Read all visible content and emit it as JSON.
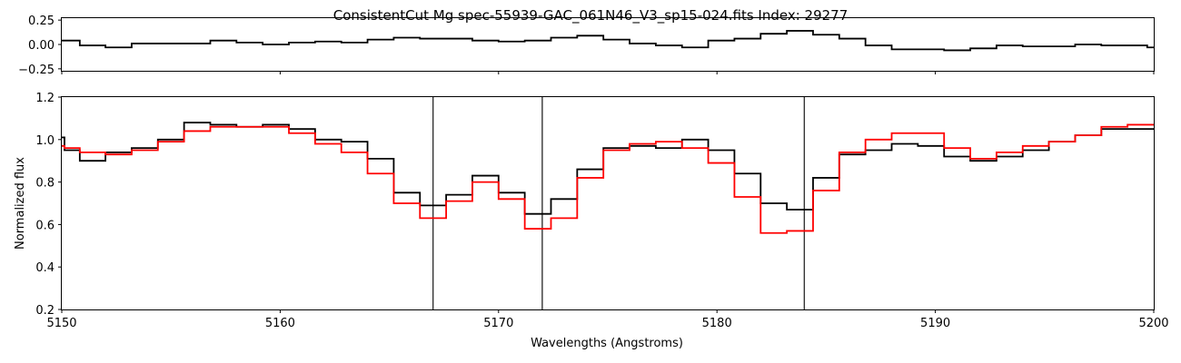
{
  "chart_data": [
    {
      "type": "line",
      "id": "residual",
      "title": "ConsistentCut Mg spec-55939-GAC_061N46_V3_sp15-024.fits Index: 29277",
      "xlabel": "",
      "ylabel": "",
      "xlim": [
        5150,
        5200
      ],
      "ylim": [
        -0.27,
        0.27
      ],
      "yticks": [
        -0.25,
        0.0,
        0.25
      ],
      "ytick_labels": [
        "−0.25",
        "0.00",
        "0.25"
      ],
      "xticks_labeled": false,
      "drawstyle": "steps-mid",
      "series": [
        {
          "color": "#000000",
          "x": [
            5150.0,
            5150.25,
            5151.4,
            5152.6,
            5153.8,
            5155.0,
            5156.2,
            5157.4,
            5158.6,
            5159.8,
            5161.0,
            5162.2,
            5163.4,
            5164.6,
            5165.8,
            5167.0,
            5168.2,
            5169.4,
            5170.6,
            5171.8,
            5173.0,
            5174.2,
            5175.4,
            5176.6,
            5177.8,
            5179.0,
            5180.2,
            5181.4,
            5182.6,
            5183.8,
            5185.0,
            5186.2,
            5187.4,
            5188.6,
            5189.8,
            5191.0,
            5192.2,
            5193.4,
            5194.6,
            5195.8,
            5197.0,
            5198.2,
            5199.4,
            5200.0
          ],
          "y": [
            0.04,
            0.04,
            -0.01,
            -0.03,
            0.01,
            0.01,
            0.01,
            0.04,
            0.02,
            0.0,
            0.02,
            0.03,
            0.02,
            0.05,
            0.07,
            0.06,
            0.06,
            0.04,
            0.03,
            0.04,
            0.07,
            0.09,
            0.05,
            0.01,
            -0.01,
            -0.03,
            0.04,
            0.06,
            0.11,
            0.14,
            0.1,
            0.06,
            -0.01,
            -0.05,
            -0.05,
            -0.06,
            -0.04,
            -0.01,
            -0.02,
            -0.02,
            0.0,
            -0.01,
            -0.01,
            -0.03
          ]
        }
      ]
    },
    {
      "type": "line",
      "id": "spectrum",
      "title": "",
      "xlabel": "Wavelengths (Angstroms)",
      "ylabel": "Normalized flux",
      "xlim": [
        5150,
        5200
      ],
      "ylim": [
        0.2,
        1.2
      ],
      "xticks": [
        5150,
        5160,
        5170,
        5180,
        5190,
        5200
      ],
      "yticks": [
        0.2,
        0.4,
        0.6,
        0.8,
        1.0,
        1.2
      ],
      "drawstyle": "steps-mid",
      "vlines": [
        5167.0,
        5172.0,
        5184.0
      ],
      "series": [
        {
          "color": "#000000",
          "x": [
            5150.0,
            5150.25,
            5151.4,
            5152.6,
            5153.8,
            5155.0,
            5156.2,
            5157.4,
            5158.6,
            5159.8,
            5161.0,
            5162.2,
            5163.4,
            5164.6,
            5165.8,
            5167.0,
            5168.2,
            5169.4,
            5170.6,
            5171.8,
            5173.0,
            5174.2,
            5175.4,
            5176.6,
            5177.8,
            5179.0,
            5180.2,
            5181.4,
            5182.6,
            5183.8,
            5185.0,
            5186.2,
            5187.4,
            5188.6,
            5189.8,
            5191.0,
            5192.2,
            5193.4,
            5194.6,
            5195.8,
            5197.0,
            5198.2,
            5199.4,
            5200.0
          ],
          "y": [
            1.01,
            0.95,
            0.9,
            0.94,
            0.96,
            1.0,
            1.08,
            1.07,
            1.06,
            1.07,
            1.05,
            1.0,
            0.99,
            0.91,
            0.75,
            0.69,
            0.74,
            0.83,
            0.75,
            0.65,
            0.72,
            0.86,
            0.96,
            0.97,
            0.96,
            1.0,
            0.95,
            0.84,
            0.7,
            0.67,
            0.82,
            0.93,
            0.95,
            0.98,
            0.97,
            0.92,
            0.9,
            0.92,
            0.95,
            0.99,
            1.02,
            1.05,
            1.05,
            1.05
          ]
        },
        {
          "color": "#ff0000",
          "x": [
            5150.0,
            5150.25,
            5151.4,
            5152.6,
            5153.8,
            5155.0,
            5156.2,
            5157.4,
            5158.6,
            5159.8,
            5161.0,
            5162.2,
            5163.4,
            5164.6,
            5165.8,
            5167.0,
            5168.2,
            5169.4,
            5170.6,
            5171.8,
            5173.0,
            5174.2,
            5175.4,
            5176.6,
            5177.8,
            5179.0,
            5180.2,
            5181.4,
            5182.6,
            5183.8,
            5185.0,
            5186.2,
            5187.4,
            5188.6,
            5189.8,
            5191.0,
            5192.2,
            5193.4,
            5194.6,
            5195.8,
            5197.0,
            5198.2,
            5199.4,
            5200.0
          ],
          "y": [
            0.97,
            0.96,
            0.94,
            0.93,
            0.95,
            0.99,
            1.04,
            1.06,
            1.06,
            1.06,
            1.03,
            0.98,
            0.94,
            0.84,
            0.7,
            0.63,
            0.71,
            0.8,
            0.72,
            0.58,
            0.63,
            0.82,
            0.95,
            0.98,
            0.99,
            0.96,
            0.89,
            0.73,
            0.56,
            0.57,
            0.76,
            0.94,
            1.0,
            1.03,
            1.03,
            0.96,
            0.91,
            0.94,
            0.97,
            0.99,
            1.02,
            1.06,
            1.07,
            1.07
          ]
        }
      ]
    }
  ]
}
